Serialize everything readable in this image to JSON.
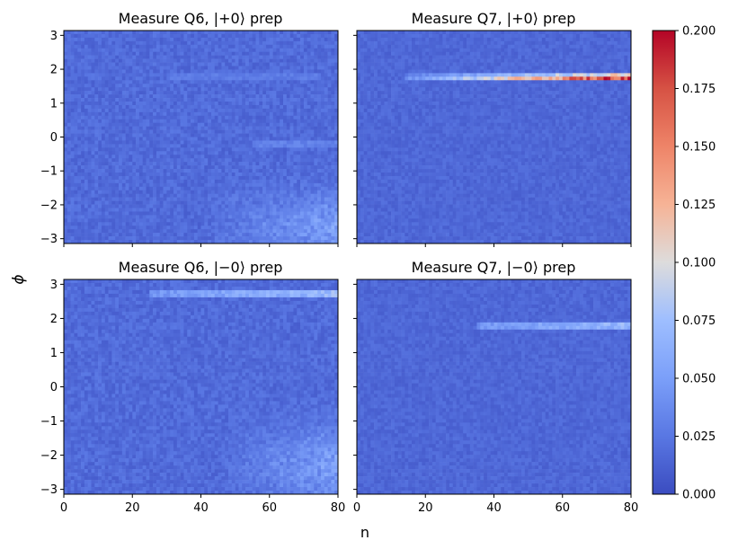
{
  "chart_data": {
    "type": "heatmap",
    "colormap": "coolwarm",
    "shared_xlabel": "n",
    "shared_ylabel": "ϕ",
    "colorbar": {
      "min": 0.0,
      "max": 0.2,
      "ticks": [
        "0.000",
        "0.025",
        "0.050",
        "0.075",
        "0.100",
        "0.125",
        "0.150",
        "0.175",
        "0.200"
      ]
    },
    "x_ticks": [
      "0",
      "20",
      "40",
      "60",
      "80"
    ],
    "y_ticks": [
      "3",
      "2",
      "1",
      "0",
      "−1",
      "−2",
      "−3"
    ],
    "xlim": [
      0,
      80
    ],
    "ylim": [
      -3.14159,
      3.14159
    ],
    "n_bins_x": 80,
    "n_bins_y": 60,
    "panels": [
      {
        "title": "Measure Q6, |+0⟩ prep",
        "background_level": 0.018,
        "noise": 0.008,
        "features": [
          {
            "kind": "corner_glow",
            "x_from": 40,
            "phi_center": -2.6,
            "phi_width": 0.9,
            "peak": 0.05
          },
          {
            "kind": "stripe",
            "phi": -0.2,
            "x_from": 55,
            "x_to": 80,
            "value": 0.032
          },
          {
            "kind": "stripe",
            "phi": 1.8,
            "x_from": 30,
            "x_to": 75,
            "value": 0.028
          }
        ]
      },
      {
        "title": "Measure Q7, |+0⟩ prep",
        "background_level": 0.016,
        "noise": 0.006,
        "features": [
          {
            "kind": "stripe",
            "phi": 1.72,
            "x_from": 14,
            "x_to": 80,
            "value_start": 0.04,
            "value_end": 0.19
          },
          {
            "kind": "stripe",
            "phi": 1.83,
            "x_from": 14,
            "x_to": 80,
            "value_start": 0.03,
            "value_end": 0.11
          }
        ]
      },
      {
        "title": "Measure Q6, |−0⟩ prep",
        "background_level": 0.018,
        "noise": 0.008,
        "features": [
          {
            "kind": "stripe",
            "phi": 2.7,
            "x_from": 25,
            "x_to": 80,
            "value_start": 0.045,
            "value_end": 0.07
          },
          {
            "kind": "stripe",
            "phi": 2.8,
            "x_from": 40,
            "x_to": 80,
            "value_start": 0.04,
            "value_end": 0.06
          },
          {
            "kind": "corner_glow",
            "x_from": 45,
            "phi_center": -2.3,
            "phi_width": 1.1,
            "peak": 0.05
          }
        ]
      },
      {
        "title": "Measure Q7, |−0⟩ prep",
        "background_level": 0.016,
        "noise": 0.006,
        "features": [
          {
            "kind": "stripe",
            "phi": 1.8,
            "x_from": 35,
            "x_to": 80,
            "value_start": 0.045,
            "value_end": 0.07
          }
        ]
      }
    ]
  }
}
